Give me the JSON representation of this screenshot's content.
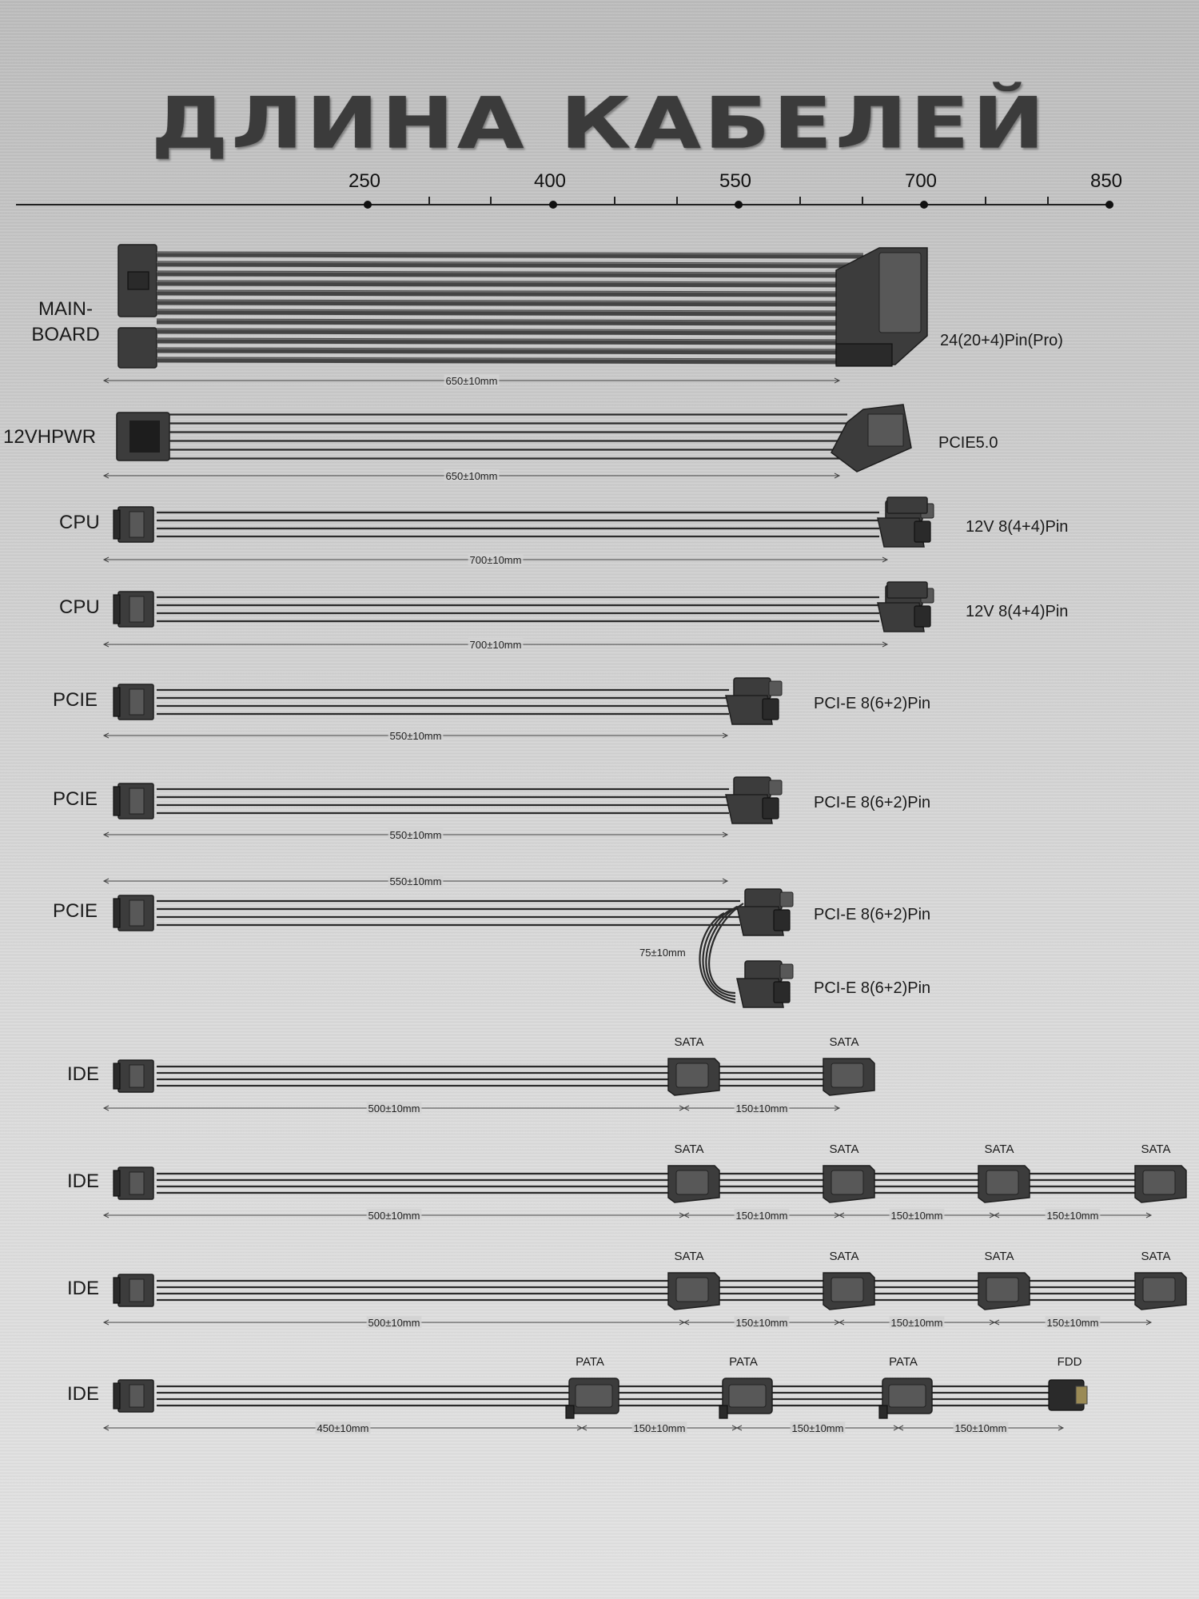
{
  "title": "ДЛИНА КАБЕЛЕЙ",
  "scale": {
    "ticks": [
      "250",
      "400",
      "550",
      "700",
      "850"
    ]
  },
  "cables": [
    {
      "label": "MAIN-\nBOARD",
      "label_lines": [
        "MAIN-",
        "BOARD"
      ],
      "connector": "24(20+4)Pin(Pro)",
      "length": "650±10mm"
    },
    {
      "label": "12VHPWR",
      "connector": "PCIE5.0",
      "length": "650±10mm"
    },
    {
      "label": "CPU",
      "connector": "12V 8(4+4)Pin",
      "length": "700±10mm"
    },
    {
      "label": "CPU",
      "connector": "12V 8(4+4)Pin",
      "length": "700±10mm"
    },
    {
      "label": "PCIE",
      "connector": "PCI-E 8(6+2)Pin",
      "length": "550±10mm"
    },
    {
      "label": "PCIE",
      "connector": "PCI-E 8(6+2)Pin",
      "length": "550±10mm"
    },
    {
      "label": "PCIE",
      "connector": "PCI-E 8(6+2)Pin",
      "connector2": "PCI-E 8(6+2)Pin",
      "length": "550±10mm",
      "branch_length": "75±10mm"
    },
    {
      "label": "IDE",
      "segments": [
        "500±10mm",
        "150±10mm"
      ],
      "connectors": [
        "SATA",
        "SATA"
      ]
    },
    {
      "label": "IDE",
      "segments": [
        "500±10mm",
        "150±10mm",
        "150±10mm",
        "150±10mm"
      ],
      "connectors": [
        "SATA",
        "SATA",
        "SATA",
        "SATA"
      ]
    },
    {
      "label": "IDE",
      "segments": [
        "500±10mm",
        "150±10mm",
        "150±10mm",
        "150±10mm"
      ],
      "connectors": [
        "SATA",
        "SATA",
        "SATA",
        "SATA"
      ]
    },
    {
      "label": "IDE",
      "segments": [
        "450±10mm",
        "150±10mm",
        "150±10mm",
        "150±10mm"
      ],
      "connectors": [
        "PATA",
        "PATA",
        "PATA",
        "FDD"
      ]
    }
  ],
  "colors": {
    "background": "#cdcdcd",
    "title": "#3b3b3b",
    "connector": "#3c3c3c",
    "wire": "#2a2a2a"
  }
}
